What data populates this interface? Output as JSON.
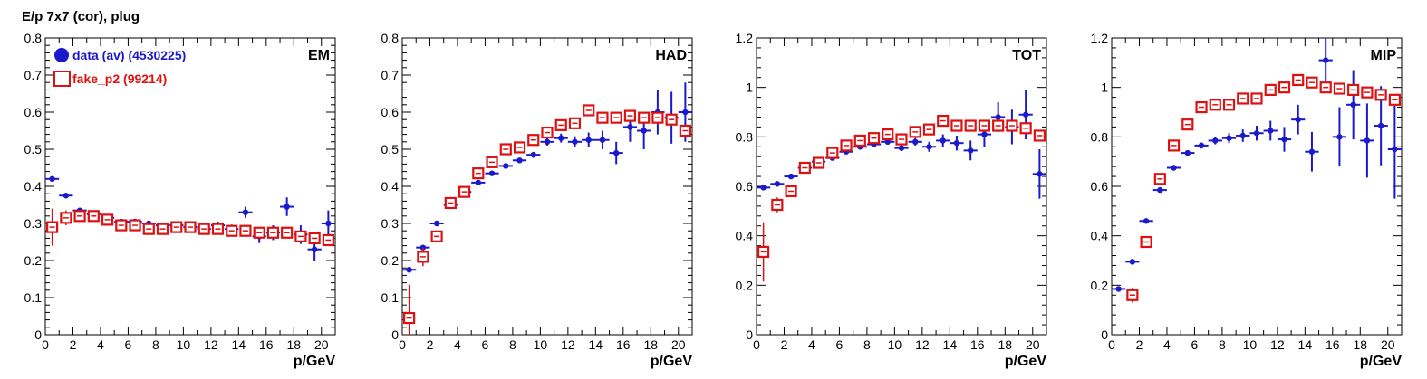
{
  "figure": {
    "title": "E/p 7x7 (cor), plug"
  },
  "legend": [
    {
      "label": "data (av) (4530225)",
      "color": "#1a1acc",
      "marker": "filled-circle"
    },
    {
      "label": "fake_p2 (99214)",
      "color": "#dd1111",
      "marker": "open-square"
    }
  ],
  "chart_data": [
    {
      "type": "scatter",
      "title": "EM",
      "xlabel": "p/GeV",
      "ylabel": "",
      "xlim": [
        0,
        21
      ],
      "ylim": [
        0,
        0.8
      ],
      "xticks": [
        0,
        2,
        4,
        6,
        8,
        10,
        12,
        14,
        16,
        18,
        20
      ],
      "yticks": [
        0,
        0.1,
        0.2,
        0.3,
        0.4,
        0.5,
        0.6,
        0.7,
        0.8
      ],
      "ytick_labels": [
        "0",
        "0.1",
        "0.2",
        "0.3",
        "0.4",
        "0.5",
        "0.6",
        "0.7",
        "0.8"
      ],
      "series": [
        {
          "name": "data (av) (4530225)",
          "x": [
            0.5,
            1.5,
            2.5,
            3.5,
            4.5,
            5.5,
            6.5,
            7.5,
            8.5,
            9.5,
            10.5,
            11.5,
            12.5,
            13.5,
            14.5,
            15.5,
            16.5,
            17.5,
            18.5,
            19.5,
            20.5
          ],
          "y": [
            0.42,
            0.375,
            0.335,
            0.325,
            0.315,
            0.305,
            0.305,
            0.3,
            0.295,
            0.295,
            0.29,
            0.285,
            0.295,
            0.285,
            0.33,
            0.265,
            0.275,
            0.345,
            0.27,
            0.23,
            0.3
          ],
          "yerr": [
            0.003,
            0.003,
            0.003,
            0.003,
            0.004,
            0.004,
            0.004,
            0.005,
            0.006,
            0.007,
            0.008,
            0.009,
            0.01,
            0.012,
            0.015,
            0.018,
            0.02,
            0.025,
            0.025,
            0.03,
            0.035
          ]
        },
        {
          "name": "fake_p2 (99214)",
          "x": [
            0.5,
            1.5,
            2.5,
            3.5,
            4.5,
            5.5,
            6.5,
            7.5,
            8.5,
            9.5,
            10.5,
            11.5,
            12.5,
            13.5,
            14.5,
            15.5,
            16.5,
            17.5,
            18.5,
            19.5,
            20.5
          ],
          "y": [
            0.29,
            0.315,
            0.32,
            0.32,
            0.31,
            0.295,
            0.295,
            0.285,
            0.285,
            0.29,
            0.29,
            0.285,
            0.285,
            0.28,
            0.28,
            0.275,
            0.275,
            0.275,
            0.265,
            0.26,
            0.255
          ],
          "yerr": [
            0.05,
            0.02,
            0.01,
            0.008,
            0.007,
            0.007,
            0.007,
            0.007,
            0.007,
            0.007,
            0.007,
            0.007,
            0.007,
            0.007,
            0.008,
            0.008,
            0.008,
            0.009,
            0.01,
            0.01,
            0.01
          ]
        }
      ]
    },
    {
      "type": "scatter",
      "title": "HAD",
      "xlabel": "p/GeV",
      "ylabel": "",
      "xlim": [
        0,
        21
      ],
      "ylim": [
        0,
        0.8
      ],
      "xticks": [
        0,
        2,
        4,
        6,
        8,
        10,
        12,
        14,
        16,
        18,
        20
      ],
      "yticks": [
        0,
        0.1,
        0.2,
        0.3,
        0.4,
        0.5,
        0.6,
        0.7,
        0.8
      ],
      "ytick_labels": [
        "0",
        "0.1",
        "0.2",
        "0.3",
        "0.4",
        "0.5",
        "0.6",
        "0.7",
        "0.8"
      ],
      "series": [
        {
          "name": "data (av) (4530225)",
          "x": [
            0.5,
            1.5,
            2.5,
            3.5,
            4.5,
            5.5,
            6.5,
            7.5,
            8.5,
            9.5,
            10.5,
            11.5,
            12.5,
            13.5,
            14.5,
            15.5,
            16.5,
            17.5,
            18.5,
            19.5,
            20.5
          ],
          "y": [
            0.175,
            0.235,
            0.3,
            0.35,
            0.385,
            0.41,
            0.435,
            0.455,
            0.47,
            0.485,
            0.52,
            0.53,
            0.52,
            0.525,
            0.525,
            0.49,
            0.56,
            0.55,
            0.6,
            0.585,
            0.6
          ],
          "yerr": [
            0.003,
            0.003,
            0.003,
            0.004,
            0.004,
            0.005,
            0.005,
            0.006,
            0.007,
            0.008,
            0.01,
            0.012,
            0.015,
            0.02,
            0.025,
            0.03,
            0.04,
            0.05,
            0.06,
            0.07,
            0.08
          ]
        },
        {
          "name": "fake_p2 (99214)",
          "x": [
            0.5,
            1.5,
            2.5,
            3.5,
            4.5,
            5.5,
            6.5,
            7.5,
            8.5,
            9.5,
            10.5,
            11.5,
            12.5,
            13.5,
            14.5,
            15.5,
            16.5,
            17.5,
            18.5,
            19.5,
            20.5
          ],
          "y": [
            0.045,
            0.21,
            0.265,
            0.355,
            0.385,
            0.435,
            0.465,
            0.5,
            0.505,
            0.525,
            0.545,
            0.565,
            0.57,
            0.605,
            0.585,
            0.585,
            0.59,
            0.585,
            0.585,
            0.58,
            0.55
          ],
          "yerr": [
            0.09,
            0.025,
            0.015,
            0.01,
            0.008,
            0.008,
            0.008,
            0.008,
            0.008,
            0.008,
            0.008,
            0.008,
            0.008,
            0.008,
            0.008,
            0.008,
            0.009,
            0.01,
            0.01,
            0.012,
            0.015
          ]
        }
      ]
    },
    {
      "type": "scatter",
      "title": "TOT",
      "xlabel": "p/GeV",
      "ylabel": "",
      "xlim": [
        0,
        21
      ],
      "ylim": [
        0,
        1.2
      ],
      "xticks": [
        0,
        2,
        4,
        6,
        8,
        10,
        12,
        14,
        16,
        18,
        20
      ],
      "yticks": [
        0,
        0.2,
        0.4,
        0.6,
        0.8,
        1.0,
        1.2
      ],
      "ytick_labels": [
        "0",
        "0.2",
        "0.4",
        "0.6",
        "0.8",
        "1",
        "1.2"
      ],
      "series": [
        {
          "name": "data (av) (4530225)",
          "x": [
            0.5,
            1.5,
            2.5,
            3.5,
            4.5,
            5.5,
            6.5,
            7.5,
            8.5,
            9.5,
            10.5,
            11.5,
            12.5,
            13.5,
            14.5,
            15.5,
            16.5,
            17.5,
            18.5,
            19.5,
            20.5
          ],
          "y": [
            0.595,
            0.61,
            0.64,
            0.675,
            0.7,
            0.715,
            0.74,
            0.76,
            0.77,
            0.78,
            0.755,
            0.78,
            0.76,
            0.785,
            0.775,
            0.745,
            0.81,
            0.88,
            0.84,
            0.89,
            0.65
          ],
          "yerr": [
            0.003,
            0.003,
            0.004,
            0.004,
            0.005,
            0.005,
            0.006,
            0.007,
            0.008,
            0.01,
            0.012,
            0.015,
            0.02,
            0.025,
            0.03,
            0.04,
            0.05,
            0.06,
            0.07,
            0.1,
            0.1
          ]
        },
        {
          "name": "fake_p2 (99214)",
          "x": [
            0.5,
            1.5,
            2.5,
            3.5,
            4.5,
            5.5,
            6.5,
            7.5,
            8.5,
            9.5,
            10.5,
            11.5,
            12.5,
            13.5,
            14.5,
            15.5,
            16.5,
            17.5,
            18.5,
            19.5,
            20.5
          ],
          "y": [
            0.335,
            0.525,
            0.58,
            0.675,
            0.695,
            0.735,
            0.765,
            0.785,
            0.795,
            0.81,
            0.79,
            0.82,
            0.83,
            0.865,
            0.845,
            0.845,
            0.845,
            0.845,
            0.845,
            0.835,
            0.805
          ],
          "yerr": [
            0.12,
            0.03,
            0.02,
            0.012,
            0.01,
            0.01,
            0.01,
            0.01,
            0.01,
            0.01,
            0.01,
            0.01,
            0.01,
            0.01,
            0.01,
            0.01,
            0.012,
            0.012,
            0.014,
            0.015,
            0.02
          ]
        }
      ]
    },
    {
      "type": "scatter",
      "title": "MIP",
      "xlabel": "p/GeV",
      "ylabel": "",
      "xlim": [
        0,
        21
      ],
      "ylim": [
        0,
        1.2
      ],
      "xticks": [
        0,
        2,
        4,
        6,
        8,
        10,
        12,
        14,
        16,
        18,
        20
      ],
      "yticks": [
        0,
        0.2,
        0.4,
        0.6,
        0.8,
        1.0,
        1.2
      ],
      "ytick_labels": [
        "0",
        "0.2",
        "0.4",
        "0.6",
        "0.8",
        "1",
        "1.2"
      ],
      "series": [
        {
          "name": "data (av) (4530225)",
          "x": [
            0.5,
            1.5,
            2.5,
            3.5,
            4.5,
            5.5,
            6.5,
            7.5,
            8.5,
            9.5,
            10.5,
            11.5,
            12.5,
            13.5,
            14.5,
            15.5,
            16.5,
            17.5,
            18.5,
            19.5,
            20.5
          ],
          "y": [
            0.185,
            0.295,
            0.46,
            0.585,
            0.675,
            0.735,
            0.765,
            0.785,
            0.795,
            0.805,
            0.815,
            0.825,
            0.79,
            0.87,
            0.74,
            1.11,
            0.8,
            0.93,
            0.785,
            0.845,
            0.75
          ],
          "yerr": [
            0.005,
            0.005,
            0.006,
            0.007,
            0.008,
            0.01,
            0.012,
            0.015,
            0.02,
            0.025,
            0.03,
            0.04,
            0.05,
            0.06,
            0.08,
            0.1,
            0.12,
            0.14,
            0.15,
            0.16,
            0.2
          ]
        },
        {
          "name": "fake_p2 (99214)",
          "x": [
            0.5,
            1.5,
            2.5,
            3.5,
            4.5,
            5.5,
            6.5,
            7.5,
            8.5,
            9.5,
            10.5,
            11.5,
            12.5,
            13.5,
            14.5,
            15.5,
            16.5,
            17.5,
            18.5,
            19.5,
            20.5
          ],
          "y": [
            null,
            0.16,
            0.375,
            0.63,
            0.765,
            0.85,
            0.92,
            0.93,
            0.93,
            0.955,
            0.955,
            0.99,
            1.0,
            1.03,
            1.02,
            1.0,
            0.995,
            0.99,
            0.98,
            0.97,
            0.95
          ],
          "yerr": [
            0,
            0.03,
            0.02,
            0.015,
            0.012,
            0.01,
            0.01,
            0.01,
            0.01,
            0.01,
            0.01,
            0.01,
            0.01,
            0.01,
            0.01,
            0.01,
            0.01,
            0.012,
            0.012,
            0.015,
            0.015
          ]
        }
      ]
    }
  ]
}
